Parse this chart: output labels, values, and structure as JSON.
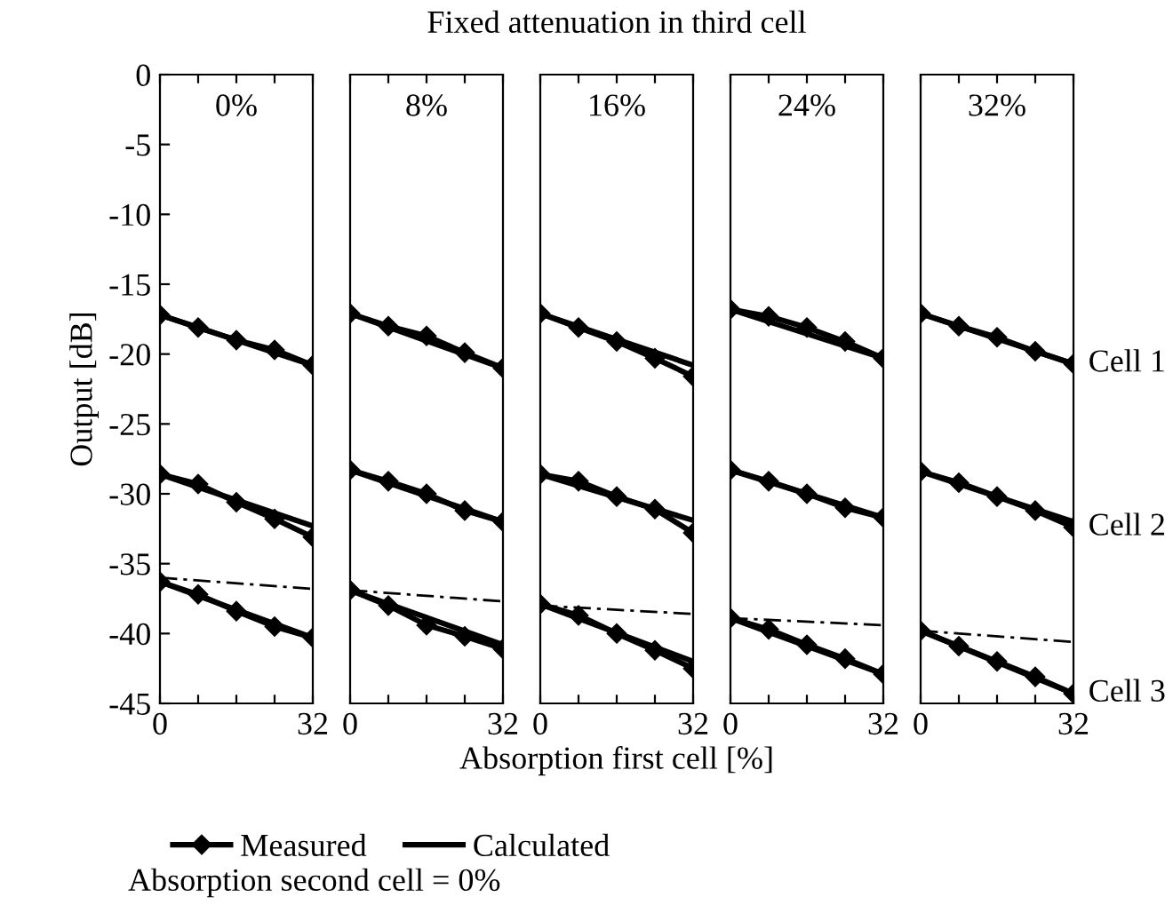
{
  "chart_data": [
    {
      "type": "line",
      "title": "0%",
      "ylabel": "Output [dB]",
      "annotations": [
        "Fixed attenuation in third cell",
        "Absorption second cell = 0%"
      ],
      "legend": "bottom",
      "xlim": [
        0,
        32
      ],
      "ylim": [
        -45,
        0
      ],
      "xticks": [
        0,
        {
          "value": 8,
          "label": null
        },
        {
          "value": 16,
          "label": null
        },
        {
          "value": 24,
          "label": null
        },
        32
      ],
      "yticks": [
        0,
        -5,
        -10,
        -15,
        -20,
        -25,
        -30,
        -35,
        -40,
        -45
      ],
      "series": [
        {
          "name": "Measured",
          "color": "#000000",
          "marker": "diamond",
          "x": [
            0,
            8,
            16,
            24,
            32
          ],
          "values": [
            -17.2,
            -18.1,
            -19.0,
            -19.7,
            -20.8
          ]
        },
        {
          "color": "#000000",
          "marker": "diamond",
          "x": [
            0,
            8,
            16,
            24,
            32
          ],
          "values": [
            -28.6,
            -29.3,
            -30.6,
            -31.8,
            -33.1
          ]
        },
        {
          "color": "#000000",
          "marker": "diamond",
          "x": [
            0,
            8,
            16,
            24,
            32
          ],
          "values": [
            -36.3,
            -37.2,
            -38.4,
            -39.5,
            -40.3
          ]
        },
        {
          "name": "Calculated",
          "color": "#000000",
          "x": [
            0,
            32
          ],
          "values": [
            -17.2,
            -20.8
          ]
        },
        {
          "color": "#000000",
          "x": [
            0,
            32
          ],
          "values": [
            -28.6,
            -32.3
          ]
        },
        {
          "color": "#000000",
          "x": [
            0,
            32
          ],
          "values": [
            -36.3,
            -40.3
          ]
        },
        {
          "color": "#000000",
          "line_style": "dashed",
          "x": [
            0,
            32
          ],
          "values": [
            -36.0,
            -36.8
          ]
        }
      ]
    },
    {
      "type": "line",
      "title": "8%",
      "tick_labels": "x",
      "xlim": [
        0,
        32
      ],
      "ylim": [
        -45,
        0
      ],
      "xticks": [
        0,
        {
          "value": 8,
          "label": null
        },
        {
          "value": 16,
          "label": null
        },
        {
          "value": 24,
          "label": null
        },
        32
      ],
      "series": [
        {
          "color": "#000000",
          "marker": "diamond",
          "x": [
            0,
            8,
            16,
            24,
            32
          ],
          "values": [
            -17.1,
            -18.0,
            -18.7,
            -19.9,
            -21.0
          ]
        },
        {
          "color": "#000000",
          "marker": "diamond",
          "x": [
            0,
            8,
            16,
            24,
            32
          ],
          "values": [
            -28.3,
            -29.1,
            -30.0,
            -31.2,
            -32.0
          ]
        },
        {
          "color": "#000000",
          "marker": "diamond",
          "x": [
            0,
            8,
            16,
            24,
            32
          ],
          "values": [
            -36.9,
            -38.0,
            -39.4,
            -40.2,
            -41.1
          ]
        },
        {
          "color": "#000000",
          "x": [
            0,
            32
          ],
          "values": [
            -17.1,
            -21.0
          ]
        },
        {
          "color": "#000000",
          "x": [
            0,
            32
          ],
          "values": [
            -28.3,
            -32.0
          ]
        },
        {
          "color": "#000000",
          "x": [
            0,
            32
          ],
          "values": [
            -36.9,
            -40.8
          ]
        },
        {
          "color": "#000000",
          "line_style": "dashed",
          "x": [
            0,
            32
          ],
          "values": [
            -36.9,
            -37.7
          ]
        }
      ]
    },
    {
      "type": "line",
      "title": "16%",
      "xlabel": "Absorption first cell [%]",
      "tick_labels": "x",
      "xlim": [
        0,
        32
      ],
      "ylim": [
        -45,
        0
      ],
      "xticks": [
        0,
        {
          "value": 8,
          "label": null
        },
        {
          "value": 16,
          "label": null
        },
        {
          "value": 24,
          "label": null
        },
        32
      ],
      "series": [
        {
          "color": "#000000",
          "marker": "diamond",
          "x": [
            0,
            8,
            16,
            24,
            32
          ],
          "values": [
            -17.1,
            -18.1,
            -19.1,
            -20.3,
            -21.6
          ]
        },
        {
          "color": "#000000",
          "marker": "diamond",
          "x": [
            0,
            8,
            16,
            24,
            32
          ],
          "values": [
            -28.6,
            -29.1,
            -30.2,
            -31.1,
            -32.8
          ]
        },
        {
          "color": "#000000",
          "marker": "diamond",
          "x": [
            0,
            8,
            16,
            24,
            32
          ],
          "values": [
            -37.9,
            -38.7,
            -40.0,
            -41.2,
            -42.5
          ]
        },
        {
          "color": "#000000",
          "x": [
            0,
            32
          ],
          "values": [
            -17.1,
            -20.8
          ]
        },
        {
          "color": "#000000",
          "x": [
            0,
            32
          ],
          "values": [
            -28.6,
            -31.9
          ]
        },
        {
          "color": "#000000",
          "x": [
            0,
            32
          ],
          "values": [
            -37.9,
            -42.0
          ]
        },
        {
          "color": "#000000",
          "line_style": "dashed",
          "x": [
            0,
            32
          ],
          "values": [
            -38.0,
            -38.6
          ]
        }
      ]
    },
    {
      "type": "line",
      "title": "24%",
      "tick_labels": "x",
      "xlim": [
        0,
        32
      ],
      "ylim": [
        -45,
        0
      ],
      "xticks": [
        0,
        {
          "value": 8,
          "label": null
        },
        {
          "value": 16,
          "label": null
        },
        {
          "value": 24,
          "label": null
        },
        32
      ],
      "series": [
        {
          "color": "#000000",
          "marker": "diamond",
          "x": [
            0,
            8,
            16,
            24,
            32
          ],
          "values": [
            -16.8,
            -17.3,
            -18.1,
            -19.1,
            -20.3
          ]
        },
        {
          "color": "#000000",
          "marker": "diamond",
          "x": [
            0,
            8,
            16,
            24,
            32
          ],
          "values": [
            -28.3,
            -29.1,
            -30.0,
            -31.0,
            -31.7
          ]
        },
        {
          "color": "#000000",
          "marker": "diamond",
          "x": [
            0,
            8,
            16,
            24,
            32
          ],
          "values": [
            -38.9,
            -39.7,
            -40.8,
            -41.8,
            -42.9
          ]
        },
        {
          "color": "#000000",
          "x": [
            0,
            32
          ],
          "values": [
            -16.8,
            -20.3
          ]
        },
        {
          "color": "#000000",
          "x": [
            0,
            32
          ],
          "values": [
            -28.3,
            -31.7
          ]
        },
        {
          "color": "#000000",
          "x": [
            0,
            32
          ],
          "values": [
            -38.9,
            -42.9
          ]
        },
        {
          "color": "#000000",
          "line_style": "dashed",
          "x": [
            0,
            32
          ],
          "values": [
            -38.9,
            -39.4
          ]
        }
      ]
    },
    {
      "type": "line",
      "title": "32%",
      "tick_labels": "x",
      "xlim": [
        0,
        32
      ],
      "ylim": [
        -45,
        0
      ],
      "xticks": [
        0,
        {
          "value": 8,
          "label": null
        },
        {
          "value": 16,
          "label": null
        },
        {
          "value": 24,
          "label": null
        },
        32
      ],
      "annotations": [
        "Cell 1",
        "Cell 2",
        "Cell 3"
      ],
      "series": [
        {
          "color": "#000000",
          "marker": "diamond",
          "x": [
            0,
            8,
            16,
            24,
            32
          ],
          "values": [
            -17.1,
            -18.0,
            -18.8,
            -19.8,
            -20.7
          ]
        },
        {
          "color": "#000000",
          "marker": "diamond",
          "x": [
            0,
            8,
            16,
            24,
            32
          ],
          "values": [
            -28.4,
            -29.2,
            -30.2,
            -31.2,
            -32.4
          ]
        },
        {
          "color": "#000000",
          "marker": "diamond",
          "x": [
            0,
            8,
            16,
            24,
            32
          ],
          "values": [
            -39.8,
            -40.9,
            -42.0,
            -43.1,
            -44.3
          ]
        },
        {
          "color": "#000000",
          "x": [
            0,
            32
          ],
          "values": [
            -17.1,
            -20.7
          ]
        },
        {
          "color": "#000000",
          "x": [
            0,
            32
          ],
          "values": [
            -28.4,
            -32.0
          ]
        },
        {
          "color": "#000000",
          "x": [
            0,
            32
          ],
          "values": [
            -39.8,
            -44.3
          ]
        },
        {
          "color": "#000000",
          "line_style": "dashed",
          "x": [
            0,
            32
          ],
          "values": [
            -39.8,
            -40.6
          ]
        }
      ]
    }
  ]
}
